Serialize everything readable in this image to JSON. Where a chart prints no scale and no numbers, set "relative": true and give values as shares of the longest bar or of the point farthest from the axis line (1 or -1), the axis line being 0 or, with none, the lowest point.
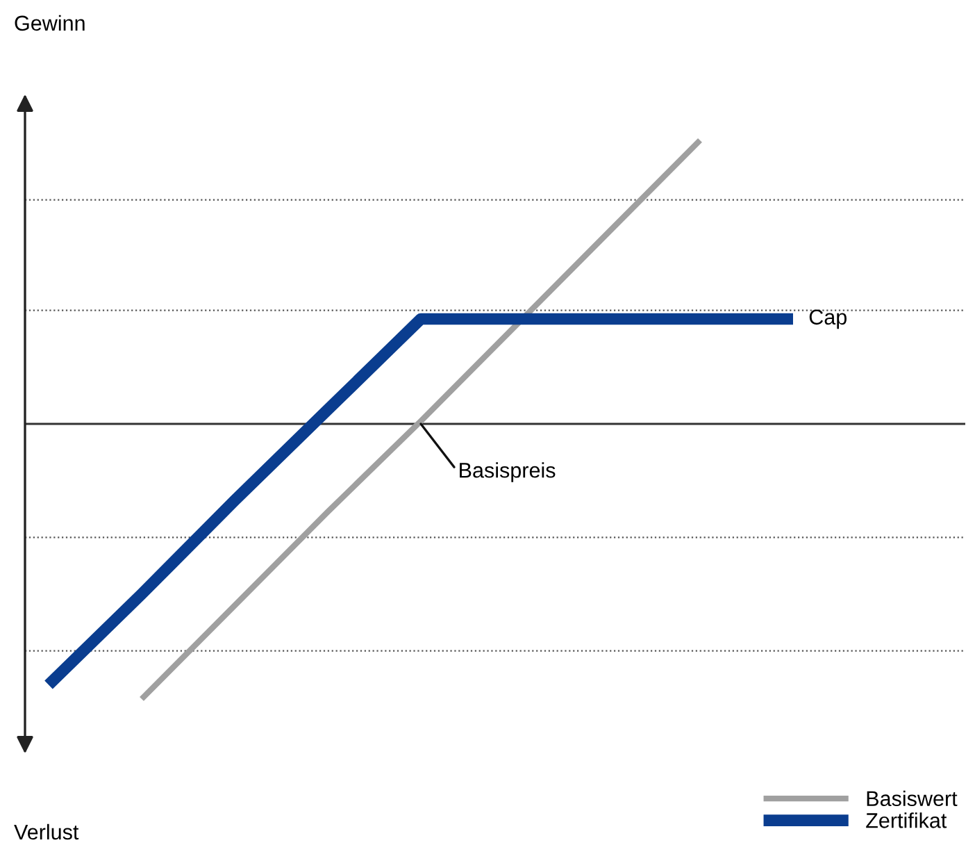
{
  "chart_data": {
    "type": "line",
    "relative": true,
    "categories": [
      null,
      null,
      null,
      null,
      null,
      null,
      null,
      null,
      null
    ],
    "series": [
      {
        "name": "Basiswert",
        "color": "#a0a0a0",
        "values": [
          null,
          -0.97,
          -0.64,
          -0.31,
          0.01,
          0.34,
          0.67,
          1.0,
          null
        ]
      },
      {
        "name": "Zertifikat",
        "color": "#0a3d8f",
        "values": [
          -0.92,
          -0.6,
          -0.27,
          0.05,
          0.37,
          0.37,
          0.37,
          0.37,
          0.37
        ]
      }
    ],
    "ref_lines": [
      {
        "axis": "y",
        "value": 0.79,
        "line_style": "dotted",
        "color": "#555555"
      },
      {
        "axis": "y",
        "value": 0.4,
        "line_style": "dotted",
        "color": "#555555"
      },
      {
        "axis": "y",
        "value": -0.4,
        "line_style": "dotted",
        "color": "#555555"
      },
      {
        "axis": "y",
        "value": -0.8,
        "line_style": "dotted",
        "color": "#555555"
      }
    ],
    "annotations": [
      "Gewinn",
      "Verlust",
      "Cap",
      "Basispreis"
    ],
    "legend": "bottom right",
    "tick_labels": false
  }
}
